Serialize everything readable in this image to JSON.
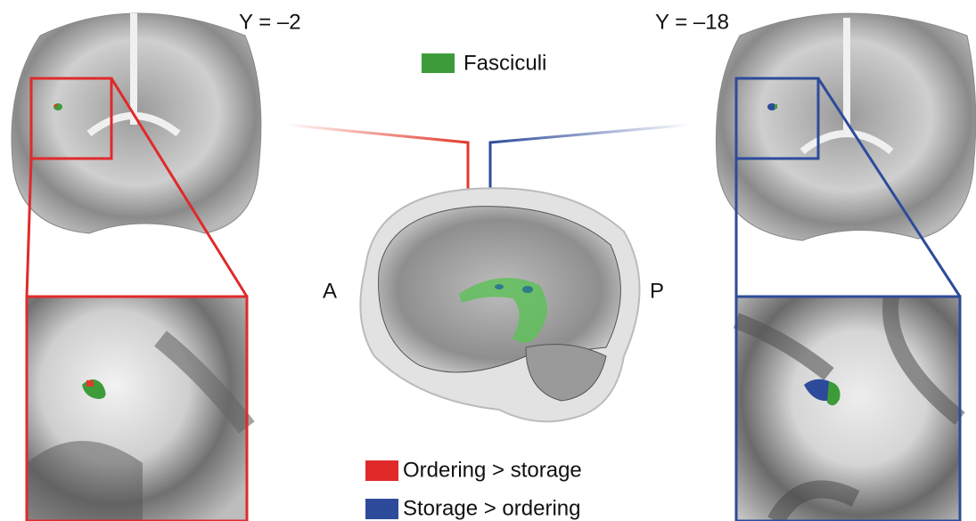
{
  "slices": {
    "left": "Y = –2",
    "right": "Y = –18"
  },
  "legend": {
    "fasciculi": "Fasciculi",
    "ordering": "Ordering > storage",
    "storage": "Storage > ordering"
  },
  "orientation": {
    "anterior": "A",
    "posterior": "P"
  }
}
